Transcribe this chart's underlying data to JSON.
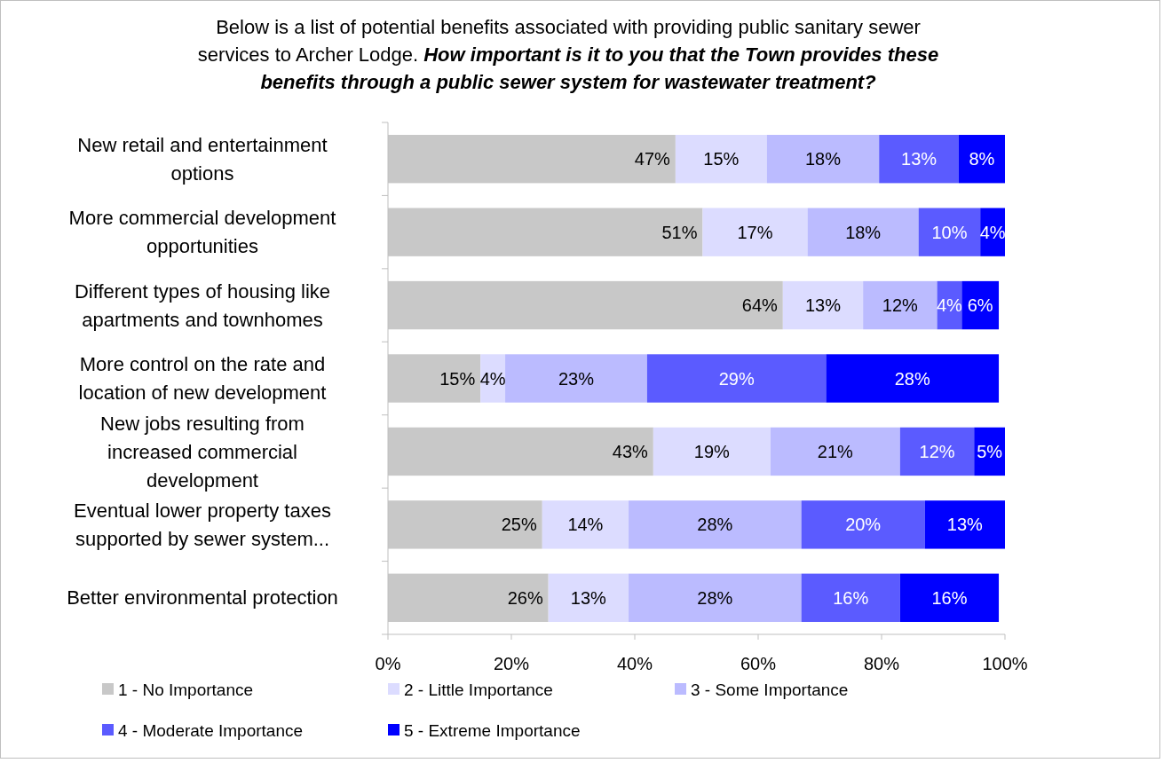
{
  "chart_data": {
    "type": "bar",
    "orientation": "horizontal",
    "stacked": true,
    "title": "Below is a list of potential benefits associated with providing public sanitary sewer services to  Archer Lodge.",
    "subtitle": "How important is it to you that the Town provides these benefits through a public sewer system for wastewater treatment?",
    "categories": [
      "New retail and entertainment options",
      "More commercial development opportunities",
      "Different types of housing like apartments and townhomes",
      "More control on the rate and location of new development",
      "New jobs resulting from increased commercial development",
      "Eventual lower property taxes supported by sewer system...",
      "Better environmental protection"
    ],
    "series": [
      {
        "name": "1 - No Importance",
        "color": "#c8c8c8",
        "values": [
          46.6,
          51,
          64,
          15,
          43,
          25,
          26
        ],
        "value_labels": [
          "47%",
          "51%",
          "64%",
          "15%",
          "43%",
          "25%",
          "26%"
        ]
      },
      {
        "name": "2 - Little Importance",
        "color": "#dcdcff",
        "values": [
          14.8,
          17,
          13,
          4,
          19,
          14,
          13
        ],
        "value_labels": [
          "15%",
          "17%",
          "13%",
          "4%",
          "19%",
          "14%",
          "13%"
        ]
      },
      {
        "name": "3 - Some Importance",
        "color": "#bbbbff",
        "values": [
          18.2,
          18,
          12,
          23,
          21,
          28,
          28
        ],
        "value_labels": [
          "18%",
          "18%",
          "12%",
          "23%",
          "21%",
          "28%",
          "28%"
        ]
      },
      {
        "name": "4 - Moderate Importance",
        "color": "#5b5bff",
        "values": [
          12.9,
          10,
          4,
          29,
          12,
          20,
          16
        ],
        "value_labels": [
          "13%",
          "10%",
          "4%",
          "29%",
          "12%",
          "20%",
          "16%"
        ]
      },
      {
        "name": "5 - Extreme Importance",
        "color": "#0000ff",
        "values": [
          7.5,
          4,
          6,
          28,
          5,
          13,
          16
        ],
        "value_labels": [
          "8%",
          "4%",
          "6%",
          "28%",
          "5%",
          "13%",
          "16%"
        ]
      }
    ],
    "xlim": [
      0,
      100
    ],
    "xticks": [
      {
        "value": 0,
        "label": "0%"
      },
      {
        "value": 20,
        "label": "20%"
      },
      {
        "value": 40,
        "label": "40%"
      },
      {
        "value": 60,
        "label": "60%"
      },
      {
        "value": 80,
        "label": "80%"
      },
      {
        "value": 100,
        "label": "100%"
      }
    ],
    "grid": false,
    "legend": "bottom"
  }
}
